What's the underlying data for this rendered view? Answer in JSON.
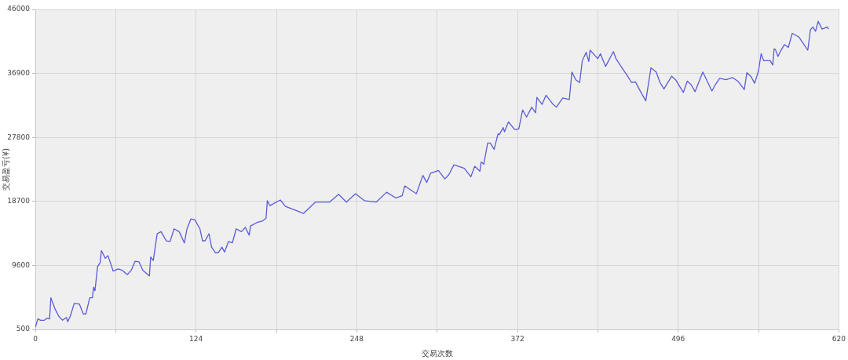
{
  "chart_data": {
    "type": "line",
    "xlabel": "交易次数",
    "ylabel": "交易盈亏(¥)",
    "color": "#5b5bd6",
    "grid": true,
    "xlim": [
      0,
      620
    ],
    "ylim": [
      500,
      46000
    ],
    "xticks": [
      0,
      {
        "value": 62,
        "label": null
      },
      124,
      {
        "value": 186,
        "label": null
      },
      248,
      {
        "value": 310,
        "label": null
      },
      372,
      {
        "value": 434,
        "label": null
      },
      496,
      {
        "value": 558,
        "label": null
      },
      620
    ],
    "yticks": [
      500,
      9600,
      18700,
      27800,
      36900,
      46000
    ],
    "x": [
      0,
      2,
      4,
      7,
      9,
      11,
      12,
      15,
      18,
      21,
      24,
      25,
      27,
      30,
      34,
      37,
      39,
      42,
      44,
      45,
      46,
      48,
      50,
      51,
      54,
      56,
      59,
      60,
      64,
      67,
      71,
      74,
      77,
      80,
      83,
      88,
      89,
      91,
      94,
      97,
      101,
      104,
      107,
      111,
      115,
      117,
      120,
      123,
      127,
      129,
      131,
      134,
      136,
      139,
      141,
      144,
      146,
      149,
      152,
      155,
      159,
      162,
      165,
      166,
      171,
      175,
      178,
      179,
      181,
      189,
      193,
      207,
      216,
      227,
      234,
      240,
      247,
      254,
      263,
      271,
      278,
      283,
      285,
      294,
      299,
      302,
      305,
      311,
      316,
      319,
      323,
      331,
      336,
      339,
      343,
      344,
      346,
      349,
      351,
      354,
      357,
      358,
      361,
      362,
      365,
      370,
      373,
      376,
      379,
      383,
      386,
      387,
      391,
      394,
      399,
      402,
      407,
      412,
      414,
      417,
      420,
      422,
      425,
      427,
      428,
      431,
      434,
      436,
      440,
      442,
      446,
      448,
      453,
      457,
      460,
      463,
      467,
      471,
      475,
      479,
      482,
      485,
      491,
      494,
      500,
      503,
      506,
      509,
      515,
      522,
      525,
      528,
      533,
      538,
      542,
      547,
      549,
      552,
      555,
      558,
      560,
      562,
      567,
      569,
      570,
      571,
      573,
      575,
      578,
      581,
      584,
      589,
      596,
      598,
      600,
      602,
      604,
      607,
      611,
      612
    ],
    "values": [
      800,
      2000,
      1800,
      1800,
      2100,
      2000,
      5000,
      3500,
      2400,
      1800,
      2200,
      1600,
      2400,
      4200,
      4100,
      2700,
      2700,
      5000,
      5000,
      6500,
      6000,
      9400,
      10000,
      11700,
      10600,
      11000,
      9400,
      8800,
      9100,
      8900,
      8300,
      8900,
      10200,
      10100,
      8900,
      8100,
      10800,
      10300,
      14100,
      14400,
      13100,
      13000,
      14800,
      14400,
      12800,
      14800,
      16200,
      16100,
      14800,
      13100,
      13100,
      14100,
      12200,
      11400,
      11400,
      12200,
      11500,
      13000,
      12800,
      14800,
      14400,
      15000,
      13900,
      15200,
      15700,
      15900,
      16300,
      18800,
      18100,
      18900,
      18000,
      17000,
      18600,
      18600,
      19700,
      18600,
      19800,
      18800,
      18600,
      20000,
      19200,
      19500,
      20900,
      19800,
      22400,
      21400,
      22700,
      23100,
      21900,
      22500,
      23900,
      23400,
      22200,
      23700,
      23000,
      24300,
      24000,
      27000,
      27000,
      26100,
      28300,
      28200,
      29200,
      28600,
      30000,
      28900,
      29000,
      31700,
      30700,
      32100,
      31300,
      33500,
      32500,
      33800,
      32600,
      32100,
      33400,
      33200,
      37100,
      36000,
      35600,
      38700,
      39900,
      38600,
      40200,
      39600,
      39000,
      39700,
      37900,
      38600,
      40000,
      39000,
      37600,
      36500,
      35600,
      35700,
      34300,
      33000,
      37700,
      37100,
      35600,
      34700,
      36500,
      36000,
      34200,
      35800,
      35300,
      34300,
      37100,
      34400,
      35400,
      36200,
      36000,
      36300,
      35800,
      34600,
      37000,
      36500,
      35500,
      37300,
      39700,
      38700,
      38700,
      38100,
      40400,
      40300,
      39300,
      40100,
      41000,
      40600,
      42600,
      42100,
      40200,
      43100,
      43500,
      42900,
      44300,
      43200,
      43500,
      43200
    ]
  }
}
